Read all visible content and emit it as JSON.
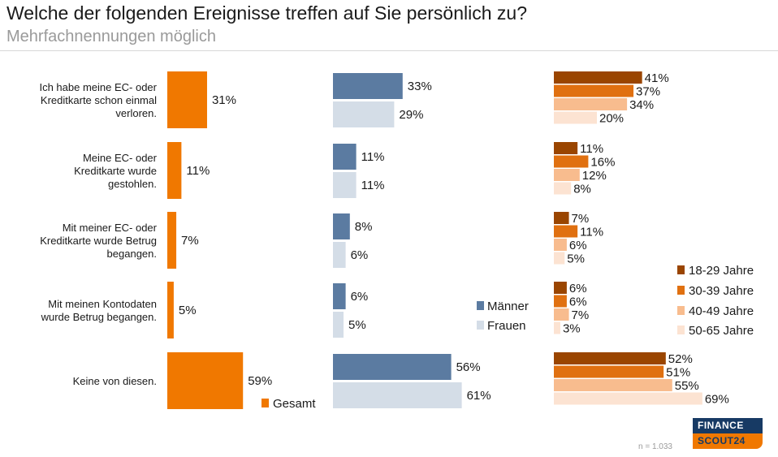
{
  "title": "Welche der folgenden Ereignisse treffen auf Sie persönlich zu?",
  "subtitle": "Mehrfachnennungen  möglich",
  "note": "n = 1.033",
  "logo": {
    "line1": "FINANCE",
    "line2": "SCOUT24"
  },
  "colors": {
    "gesamt": "#f07800",
    "maenner": "#5b7ba1",
    "frauen": "#d4dde7",
    "a18_29": "#9a4500",
    "a30_39": "#e07010",
    "a40_49": "#f8bc8e",
    "a50_65": "#fce3d2"
  },
  "chart_data": {
    "type": "bar",
    "orientation": "horizontal",
    "categories": [
      [
        "Ich habe meine EC- oder",
        "Kreditkarte schon einmal",
        "verloren."
      ],
      [
        "Meine EC- oder",
        "Kreditkarte wurde",
        "gestohlen."
      ],
      [
        "Mit meiner EC- oder",
        "Kreditkarte wurde Betrug",
        "begangen."
      ],
      [
        "Mit meinen Kontodaten",
        "wurde Betrug begangen."
      ],
      [
        "Keine von diesen."
      ]
    ],
    "panels": [
      {
        "name": "gesamt",
        "series": [
          {
            "name": "Gesamt",
            "values": [
              31,
              11,
              7,
              5,
              59
            ]
          }
        ]
      },
      {
        "name": "geschlecht",
        "series": [
          {
            "name": "Männer",
            "values": [
              33,
              11,
              8,
              6,
              56
            ]
          },
          {
            "name": "Frauen",
            "values": [
              29,
              11,
              6,
              5,
              61
            ]
          }
        ]
      },
      {
        "name": "alter",
        "series": [
          {
            "name": "18-29 Jahre",
            "values": [
              41,
              11,
              7,
              6,
              52
            ]
          },
          {
            "name": "30-39 Jahre",
            "values": [
              37,
              16,
              11,
              6,
              51
            ]
          },
          {
            "name": "40-49 Jahre",
            "values": [
              34,
              12,
              6,
              7,
              55
            ]
          },
          {
            "name": "50-65 Jahre",
            "values": [
              20,
              8,
              5,
              3,
              69
            ]
          }
        ]
      }
    ],
    "unit": "%",
    "legend": [
      "Gesamt",
      "Männer",
      "Frauen",
      "18-29 Jahre",
      "30-39 Jahre",
      "40-49 Jahre",
      "50-65 Jahre"
    ]
  }
}
